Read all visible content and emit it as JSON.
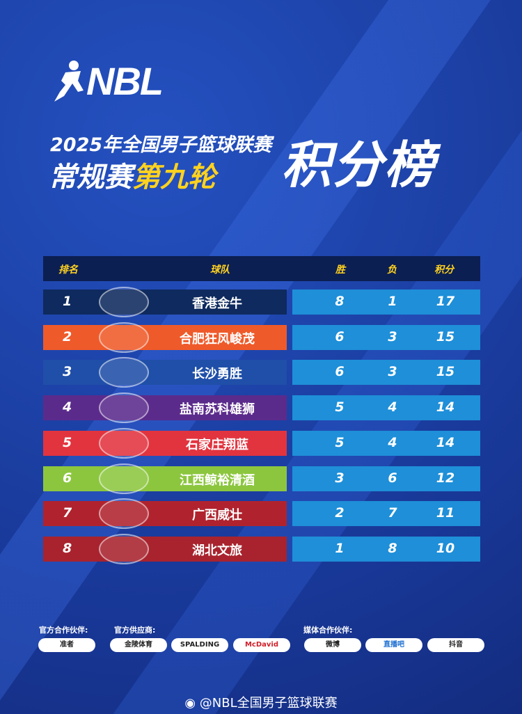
{
  "logo": {
    "text": "NBL"
  },
  "title": {
    "line1": "2025年全国男子篮球联赛",
    "line2_white": "常规赛",
    "line2_yellow": "第九轮",
    "main": "积分榜"
  },
  "table": {
    "headers": {
      "rank": "排名",
      "team": "球队",
      "wins": "胜",
      "losses": "负",
      "points": "积分"
    },
    "rows": [
      {
        "rank": "1",
        "team": "香港金牛",
        "wins": "8",
        "losses": "1",
        "points": "17",
        "color": "#0e2a5e"
      },
      {
        "rank": "2",
        "team": "合肥狂风峻茂",
        "wins": "6",
        "losses": "3",
        "points": "15",
        "color": "#ef5a2a"
      },
      {
        "rank": "3",
        "team": "长沙勇胜",
        "wins": "6",
        "losses": "3",
        "points": "15",
        "color": "#1f4fa8"
      },
      {
        "rank": "4",
        "team": "盐南苏科雄狮",
        "wins": "5",
        "losses": "4",
        "points": "14",
        "color": "#5b2b8c"
      },
      {
        "rank": "5",
        "team": "石家庄翔蓝",
        "wins": "5",
        "losses": "4",
        "points": "14",
        "color": "#e2343f"
      },
      {
        "rank": "6",
        "team": "江西鲸裕清酒",
        "wins": "3",
        "losses": "6",
        "points": "12",
        "color": "#8cc63f"
      },
      {
        "rank": "7",
        "team": "广西威壮",
        "wins": "2",
        "losses": "7",
        "points": "11",
        "color": "#b0232e"
      },
      {
        "rank": "8",
        "team": "湖北文旅",
        "wins": "1",
        "losses": "8",
        "points": "10",
        "color": "#a8232e"
      }
    ]
  },
  "partners": {
    "official_label": "官方合作伙伴:",
    "supplier_label": "官方供应商:",
    "media_label": "媒体合作伙伴:",
    "official": [
      "准者"
    ],
    "suppliers": [
      "金陵体育",
      "SPALDING",
      "McDavid"
    ],
    "media": [
      "微博",
      "直播吧",
      "抖音"
    ]
  },
  "footer": {
    "handle": "@NBL全国男子篮球联赛"
  },
  "colors": {
    "background": "#1b3fa0",
    "accent": "#ffd21f",
    "stat_cell": "#1e8fd8",
    "header": "#0c1f52"
  }
}
